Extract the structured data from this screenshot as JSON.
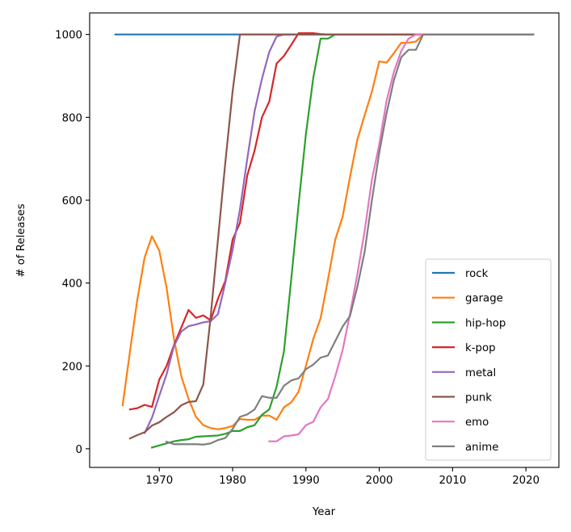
{
  "chart_data": {
    "type": "line",
    "title": "",
    "xlabel": "Year",
    "ylabel": "# of Releases",
    "xlim": [
      1960.5,
      2024.5
    ],
    "ylim": [
      -45,
      1052
    ],
    "xticks": [
      1970,
      1980,
      1990,
      2000,
      2010,
      2020
    ],
    "yticks": [
      0,
      200,
      400,
      600,
      800,
      1000
    ],
    "grid": false,
    "legend_position": "lower right",
    "series": [
      {
        "name": "rock",
        "color": "#1f77b4",
        "points": [
          [
            1964,
            1000
          ],
          [
            2021,
            1000
          ]
        ]
      },
      {
        "name": "garage",
        "color": "#ff7f0e",
        "points": [
          [
            1965,
            105
          ],
          [
            1966,
            235
          ],
          [
            1967,
            360
          ],
          [
            1968,
            462
          ],
          [
            1969,
            513
          ],
          [
            1970,
            478
          ],
          [
            1971,
            388
          ],
          [
            1972,
            265
          ],
          [
            1973,
            175
          ],
          [
            1974,
            120
          ],
          [
            1975,
            77
          ],
          [
            1976,
            57
          ],
          [
            1977,
            50
          ],
          [
            1978,
            47
          ],
          [
            1979,
            50
          ],
          [
            1980,
            55
          ],
          [
            1981,
            72
          ],
          [
            1982,
            70
          ],
          [
            1983,
            70
          ],
          [
            1984,
            80
          ],
          [
            1985,
            80
          ],
          [
            1986,
            70
          ],
          [
            1987,
            100
          ],
          [
            1988,
            112
          ],
          [
            1989,
            138
          ],
          [
            1990,
            200
          ],
          [
            1991,
            265
          ],
          [
            1992,
            315
          ],
          [
            1993,
            408
          ],
          [
            1994,
            505
          ],
          [
            1995,
            560
          ],
          [
            1996,
            655
          ],
          [
            1997,
            745
          ],
          [
            1998,
            805
          ],
          [
            1999,
            862
          ],
          [
            2000,
            935
          ],
          [
            2001,
            932
          ],
          [
            2002,
            955
          ],
          [
            2003,
            980
          ],
          [
            2004,
            980
          ],
          [
            2005,
            983
          ],
          [
            2006,
            1000
          ],
          [
            2021,
            1000
          ]
        ]
      },
      {
        "name": "hip-hop",
        "color": "#2ca02c",
        "points": [
          [
            1969,
            3
          ],
          [
            1970,
            8
          ],
          [
            1971,
            13
          ],
          [
            1972,
            18
          ],
          [
            1973,
            21
          ],
          [
            1974,
            23
          ],
          [
            1975,
            29
          ],
          [
            1976,
            30
          ],
          [
            1977,
            31
          ],
          [
            1978,
            32
          ],
          [
            1979,
            36
          ],
          [
            1980,
            43
          ],
          [
            1981,
            43
          ],
          [
            1982,
            52
          ],
          [
            1983,
            57
          ],
          [
            1984,
            82
          ],
          [
            1985,
            95
          ],
          [
            1986,
            150
          ],
          [
            1987,
            235
          ],
          [
            1988,
            410
          ],
          [
            1989,
            590
          ],
          [
            1990,
            760
          ],
          [
            1991,
            895
          ],
          [
            1992,
            990
          ],
          [
            1993,
            990
          ],
          [
            1994,
            1000
          ],
          [
            2021,
            1000
          ]
        ]
      },
      {
        "name": "k-pop",
        "color": "#d62728",
        "points": [
          [
            1966,
            95
          ],
          [
            1967,
            98
          ],
          [
            1968,
            106
          ],
          [
            1969,
            101
          ],
          [
            1970,
            167
          ],
          [
            1971,
            200
          ],
          [
            1972,
            250
          ],
          [
            1973,
            293
          ],
          [
            1974,
            335
          ],
          [
            1975,
            316
          ],
          [
            1976,
            322
          ],
          [
            1977,
            310
          ],
          [
            1978,
            362
          ],
          [
            1979,
            405
          ],
          [
            1980,
            505
          ],
          [
            1981,
            545
          ],
          [
            1982,
            660
          ],
          [
            1983,
            720
          ],
          [
            1984,
            800
          ],
          [
            1985,
            838
          ],
          [
            1986,
            930
          ],
          [
            1987,
            948
          ],
          [
            1988,
            975
          ],
          [
            1989,
            1003
          ],
          [
            1990,
            1003
          ],
          [
            1991,
            1003
          ],
          [
            1992,
            1001
          ],
          [
            1993,
            1000
          ],
          [
            2021,
            1000
          ]
        ]
      },
      {
        "name": "metal",
        "color": "#9467bd",
        "points": [
          [
            1968,
            38
          ],
          [
            1969,
            75
          ],
          [
            1970,
            128
          ],
          [
            1971,
            180
          ],
          [
            1972,
            248
          ],
          [
            1973,
            283
          ],
          [
            1974,
            296
          ],
          [
            1975,
            300
          ],
          [
            1976,
            305
          ],
          [
            1977,
            308
          ],
          [
            1978,
            325
          ],
          [
            1979,
            400
          ],
          [
            1980,
            480
          ],
          [
            1981,
            578
          ],
          [
            1982,
            700
          ],
          [
            1983,
            815
          ],
          [
            1984,
            893
          ],
          [
            1985,
            958
          ],
          [
            1986,
            995
          ],
          [
            1987,
            1000
          ],
          [
            2021,
            1000
          ]
        ]
      },
      {
        "name": "punk",
        "color": "#8c564b",
        "points": [
          [
            1966,
            25
          ],
          [
            1967,
            33
          ],
          [
            1968,
            40
          ],
          [
            1969,
            56
          ],
          [
            1970,
            64
          ],
          [
            1971,
            77
          ],
          [
            1972,
            88
          ],
          [
            1973,
            105
          ],
          [
            1974,
            113
          ],
          [
            1975,
            115
          ],
          [
            1976,
            155
          ],
          [
            1977,
            318
          ],
          [
            1978,
            505
          ],
          [
            1979,
            690
          ],
          [
            1980,
            863
          ],
          [
            1981,
            1000
          ],
          [
            2021,
            1000
          ]
        ]
      },
      {
        "name": "emo",
        "color": "#e377c2",
        "points": [
          [
            1985,
            18
          ],
          [
            1986,
            18
          ],
          [
            1987,
            30
          ],
          [
            1988,
            32
          ],
          [
            1989,
            35
          ],
          [
            1990,
            57
          ],
          [
            1991,
            65
          ],
          [
            1992,
            100
          ],
          [
            1993,
            120
          ],
          [
            1994,
            175
          ],
          [
            1995,
            238
          ],
          [
            1996,
            325
          ],
          [
            1997,
            420
          ],
          [
            1998,
            525
          ],
          [
            1999,
            650
          ],
          [
            2000,
            735
          ],
          [
            2001,
            840
          ],
          [
            2002,
            910
          ],
          [
            2003,
            960
          ],
          [
            2004,
            990
          ],
          [
            2005,
            1000
          ],
          [
            2021,
            1000
          ]
        ]
      },
      {
        "name": "anime",
        "color": "#7f7f7f",
        "points": [
          [
            1971,
            17
          ],
          [
            1972,
            11
          ],
          [
            1973,
            11
          ],
          [
            1974,
            11
          ],
          [
            1975,
            11
          ],
          [
            1976,
            10
          ],
          [
            1977,
            13
          ],
          [
            1978,
            21
          ],
          [
            1979,
            26
          ],
          [
            1980,
            48
          ],
          [
            1981,
            77
          ],
          [
            1982,
            83
          ],
          [
            1983,
            95
          ],
          [
            1984,
            127
          ],
          [
            1985,
            123
          ],
          [
            1986,
            123
          ],
          [
            1987,
            152
          ],
          [
            1988,
            165
          ],
          [
            1989,
            170
          ],
          [
            1990,
            192
          ],
          [
            1991,
            203
          ],
          [
            1992,
            220
          ],
          [
            1993,
            225
          ],
          [
            1994,
            260
          ],
          [
            1995,
            295
          ],
          [
            1996,
            320
          ],
          [
            1997,
            390
          ],
          [
            1998,
            475
          ],
          [
            1999,
            600
          ],
          [
            2000,
            715
          ],
          [
            2001,
            810
          ],
          [
            2002,
            890
          ],
          [
            2003,
            945
          ],
          [
            2004,
            963
          ],
          [
            2005,
            963
          ],
          [
            2006,
            1000
          ],
          [
            2021,
            1000
          ]
        ]
      }
    ]
  }
}
